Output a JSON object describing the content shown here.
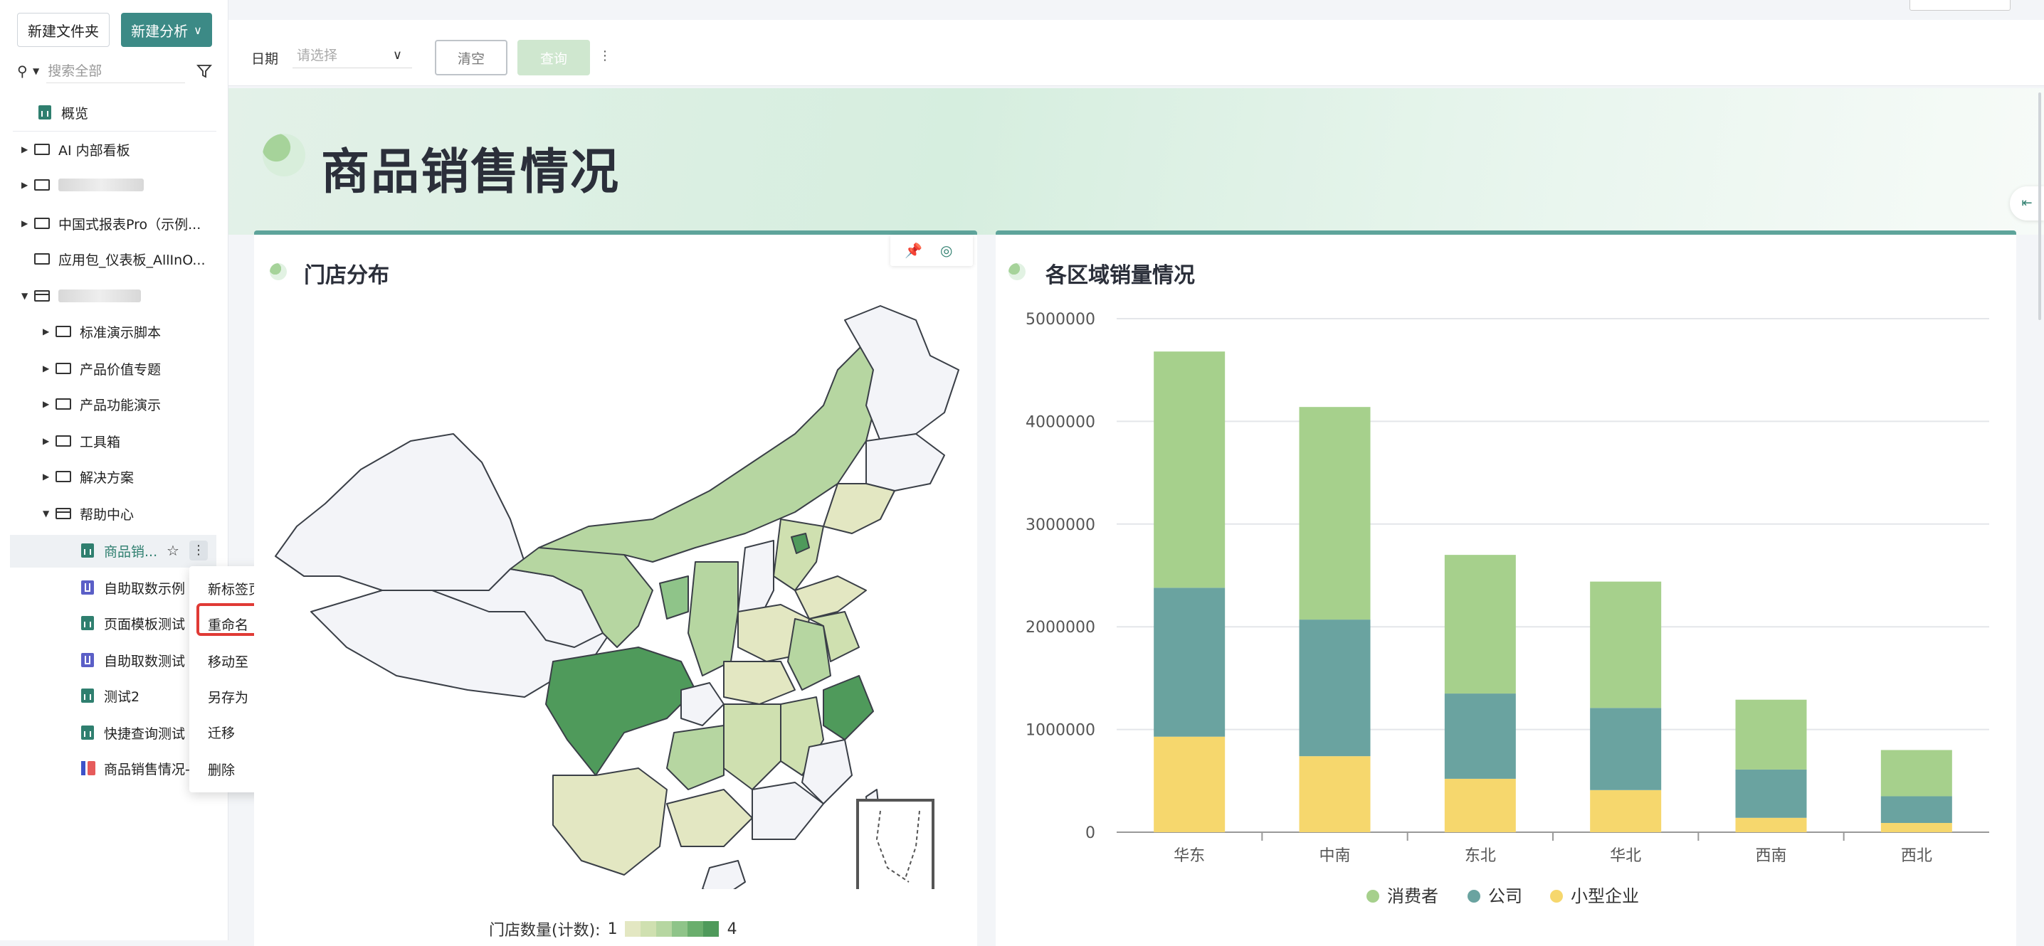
{
  "sidebar": {
    "new_folder_label": "新建文件夹",
    "new_analysis_label": "新建分析",
    "search_placeholder": "搜索全部",
    "items": [
      {
        "label": "概览"
      },
      {
        "label": "AI 内部看板"
      },
      {
        "label": ""
      },
      {
        "label": "中国式报表Pro（示例..."
      },
      {
        "label": "应用包_仪表板_AllInO..."
      },
      {
        "label": ""
      },
      {
        "label": "标准演示脚本"
      },
      {
        "label": "产品价值专题"
      },
      {
        "label": "产品功能演示"
      },
      {
        "label": "工具箱"
      },
      {
        "label": "解决方案"
      },
      {
        "label": "帮助中心"
      },
      {
        "label": "商品销..."
      },
      {
        "label": "自助取数示例"
      },
      {
        "label": "页面模板测试"
      },
      {
        "label": "自助取数测试"
      },
      {
        "label": "测试2"
      },
      {
        "label": "快捷查询测试"
      },
      {
        "label": "商品销售情况-"
      }
    ]
  },
  "context_menu": {
    "items": [
      "新标签页打开",
      "重命名",
      "移动至",
      "另存为",
      "迁移",
      "删除"
    ],
    "highlighted": "重命名"
  },
  "filter": {
    "date_label": "日期",
    "date_placeholder": "请选择",
    "clear_label": "清空",
    "query_label": "查询"
  },
  "dashboard": {
    "title": "商品销售情况"
  },
  "map_card": {
    "title": "门店分布",
    "legend_label": "门店数量(计数):",
    "legend_min": "1",
    "legend_max": "4",
    "legend_colors": [
      "#e3e7c2",
      "#cfe0b0",
      "#b6d6a1",
      "#8fc489",
      "#6aae6d",
      "#4f9a5b"
    ]
  },
  "chart_data": {
    "type": "bar",
    "stacked": true,
    "title": "各区域销量情况",
    "categories": [
      "华东",
      "中南",
      "东北",
      "华北",
      "西南",
      "西北"
    ],
    "series": [
      {
        "name": "小型企业",
        "color": "#f6d76d",
        "values": [
          930000,
          740000,
          520000,
          410000,
          140000,
          90000
        ]
      },
      {
        "name": "公司",
        "color": "#6aa3a0",
        "values": [
          1450000,
          1330000,
          830000,
          800000,
          470000,
          260000
        ]
      },
      {
        "name": "消费者",
        "color": "#a6d08c",
        "values": [
          2300000,
          2070000,
          1350000,
          1230000,
          680000,
          450000
        ]
      }
    ],
    "y_ticks": [
      "5000000",
      "4000000",
      "3000000",
      "2000000",
      "1000000",
      "0"
    ],
    "ylim": [
      0,
      5000000
    ],
    "legend": [
      "消费者",
      "公司",
      "小型企业"
    ],
    "legend_colors": [
      "#a6d08c",
      "#6aa3a0",
      "#f6d76d"
    ],
    "legend_placement": "bottom",
    "grid": true
  }
}
